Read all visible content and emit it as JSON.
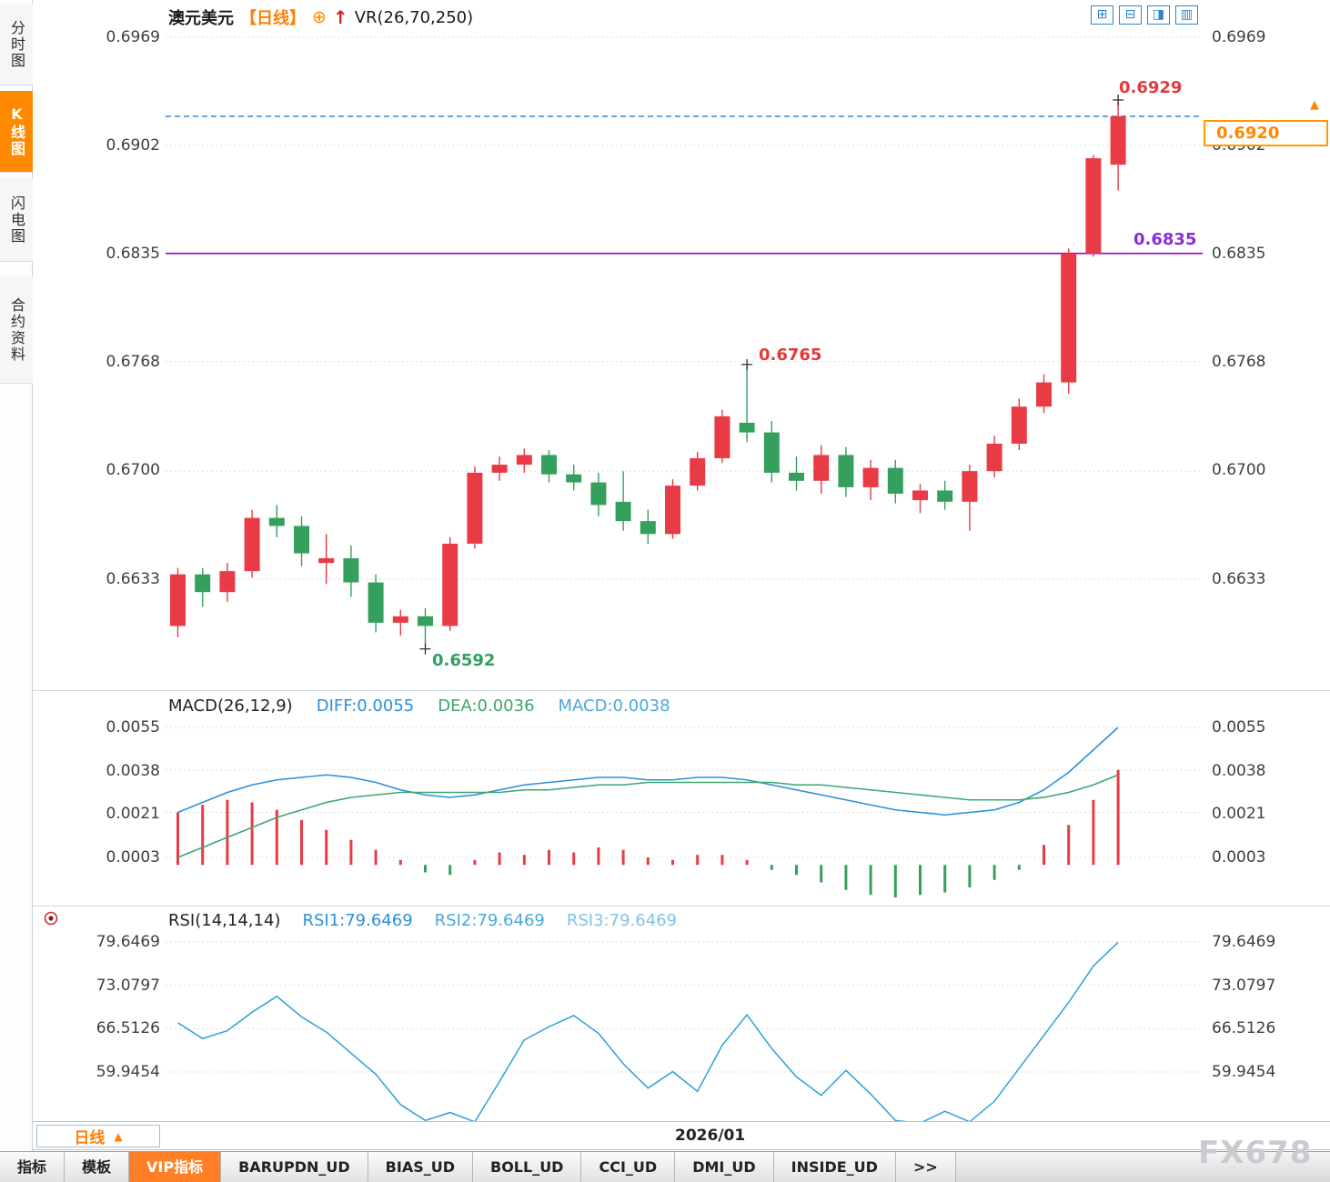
{
  "window": {
    "watermark": "FX678"
  },
  "icons": {
    "circle_plus": "⊕",
    "up_arrow": "↑",
    "triangle_up": "▲",
    "layout": [
      "⊞",
      "⊟",
      "◨",
      "▥"
    ]
  },
  "colors": {
    "up": "#e83b46",
    "down": "#35a05e",
    "accent_orange": "#ff7f27",
    "purple_line": "#9900cc",
    "dashed_blue": "#1a7fd4",
    "diff_line": "#2b8fdc",
    "dea_line": "#3aa76d",
    "macd_value": "#49a8d8",
    "rsi_line": "#2d9fd8",
    "grid": "#d9dde2"
  },
  "sidebar": {
    "items": [
      {
        "label": "分时图",
        "active": false
      },
      {
        "label": "K线图",
        "active": true
      },
      {
        "label": "闪电图",
        "active": false
      },
      {
        "label": "合约资料",
        "active": false
      }
    ]
  },
  "header": {
    "symbol": "澳元美元",
    "period_tag": "【日线】",
    "indicator": "VR(26,70,250)"
  },
  "main_chart": {
    "axis_labels": [
      "0.6969",
      "0.6902",
      "0.6835",
      "0.6768",
      "0.6700",
      "0.6633"
    ],
    "price_box": "0.6920",
    "high_label": "0.6929",
    "peak_label": "0.6765",
    "low_label": "0.6592",
    "hline_label": "0.6835"
  },
  "macd_panel": {
    "title": "MACD(26,12,9)",
    "diff": "DIFF:0.0055",
    "dea": "DEA:0.0036",
    "macd": "MACD:0.0038",
    "axis_labels": [
      "0.0055",
      "0.0038",
      "0.0021",
      "0.0003"
    ]
  },
  "rsi_panel": {
    "title": "RSI(14,14,14)",
    "rsi1": "RSI1:79.6469",
    "rsi2": "RSI2:79.6469",
    "rsi3": "RSI3:79.6469",
    "axis_labels": [
      "79.6469",
      "73.0797",
      "66.5126",
      "59.9454"
    ]
  },
  "timeline": {
    "period": "日线",
    "date": "2026/01"
  },
  "bottom_tabs": [
    {
      "label": "指标",
      "active": false
    },
    {
      "label": "模板",
      "active": false
    },
    {
      "label": "VIP指标",
      "active": true
    },
    {
      "label": "BARUPDN_UD",
      "active": false
    },
    {
      "label": "BIAS_UD",
      "active": false
    },
    {
      "label": "BOLL_UD",
      "active": false
    },
    {
      "label": "CCI_UD",
      "active": false
    },
    {
      "label": "DMI_UD",
      "active": false
    },
    {
      "label": "INSIDE_UD",
      "active": false
    },
    {
      "label": ">>",
      "active": false
    }
  ],
  "chart_data": [
    {
      "type": "candlestick",
      "title": "澳元美元 日线",
      "overlay_indicator": "VR(26,70,250)",
      "ylim": [
        0.6585,
        0.6975
      ],
      "y_ticks": [
        0.6969,
        0.6902,
        0.6835,
        0.6768,
        0.67,
        0.6633
      ],
      "hlines": [
        {
          "value": 0.692,
          "style": "dashed",
          "label": "0.6920"
        },
        {
          "value": 0.6835,
          "style": "solid",
          "label": "0.6835"
        }
      ],
      "markers": [
        {
          "price": 0.6929,
          "index": 38,
          "label": "0.6929",
          "below": false
        },
        {
          "price": 0.6765,
          "index": 23,
          "label": "0.6765",
          "below": false
        },
        {
          "price": 0.6592,
          "index": 10,
          "label": "0.6592",
          "below": true
        }
      ],
      "ohlc": [
        [
          0.6604,
          0.664,
          0.6597,
          0.6636
        ],
        [
          0.6636,
          0.664,
          0.6616,
          0.6625
        ],
        [
          0.6625,
          0.6643,
          0.6619,
          0.6638
        ],
        [
          0.6638,
          0.6676,
          0.6634,
          0.6671
        ],
        [
          0.6671,
          0.6679,
          0.6659,
          0.6666
        ],
        [
          0.6666,
          0.6672,
          0.6641,
          0.6649
        ],
        [
          0.6643,
          0.6661,
          0.663,
          0.6646
        ],
        [
          0.6646,
          0.6654,
          0.6622,
          0.6631
        ],
        [
          0.6631,
          0.6636,
          0.66,
          0.6606
        ],
        [
          0.6606,
          0.6614,
          0.6598,
          0.661
        ],
        [
          0.661,
          0.6615,
          0.6592,
          0.6604
        ],
        [
          0.6604,
          0.6659,
          0.6601,
          0.6655
        ],
        [
          0.6655,
          0.6703,
          0.6652,
          0.6699
        ],
        [
          0.6699,
          0.6709,
          0.6694,
          0.6704
        ],
        [
          0.6704,
          0.6714,
          0.6699,
          0.671
        ],
        [
          0.671,
          0.6713,
          0.6693,
          0.6698
        ],
        [
          0.6698,
          0.6704,
          0.6688,
          0.6693
        ],
        [
          0.6693,
          0.6699,
          0.6672,
          0.6679
        ],
        [
          0.6681,
          0.67,
          0.6663,
          0.6669
        ],
        [
          0.6669,
          0.6676,
          0.6655,
          0.6661
        ],
        [
          0.6661,
          0.6695,
          0.6658,
          0.6691
        ],
        [
          0.6691,
          0.6712,
          0.6688,
          0.6708
        ],
        [
          0.6708,
          0.6738,
          0.6705,
          0.6734
        ],
        [
          0.673,
          0.6765,
          0.6718,
          0.6724
        ],
        [
          0.6724,
          0.6731,
          0.6693,
          0.6699
        ],
        [
          0.6699,
          0.6709,
          0.6688,
          0.6694
        ],
        [
          0.6694,
          0.6716,
          0.6686,
          0.671
        ],
        [
          0.671,
          0.6715,
          0.6684,
          0.669
        ],
        [
          0.669,
          0.6707,
          0.6682,
          0.6702
        ],
        [
          0.6702,
          0.6707,
          0.668,
          0.6686
        ],
        [
          0.6682,
          0.6692,
          0.6674,
          0.6688
        ],
        [
          0.6688,
          0.6694,
          0.6676,
          0.6681
        ],
        [
          0.6681,
          0.6704,
          0.6663,
          0.67
        ],
        [
          0.67,
          0.6722,
          0.6696,
          0.6717
        ],
        [
          0.6717,
          0.6745,
          0.6713,
          0.674
        ],
        [
          0.674,
          0.676,
          0.6736,
          0.6755
        ],
        [
          0.6755,
          0.6838,
          0.6748,
          0.6835
        ],
        [
          0.6835,
          0.6896,
          0.6833,
          0.6894
        ],
        [
          0.689,
          0.6929,
          0.6874,
          0.692
        ]
      ]
    },
    {
      "type": "macd",
      "title": "MACD(26,12,9)",
      "params": [
        26,
        12,
        9
      ],
      "latest": {
        "diff": 0.0055,
        "dea": 0.0036,
        "macd": 0.0038
      },
      "y_ticks": [
        0.0055,
        0.0038,
        0.0021,
        0.0003
      ],
      "diff": [
        0.0021,
        0.0025,
        0.0029,
        0.0032,
        0.0034,
        0.0035,
        0.0036,
        0.0035,
        0.0033,
        0.003,
        0.0028,
        0.0027,
        0.0028,
        0.003,
        0.0032,
        0.0033,
        0.0034,
        0.0035,
        0.0035,
        0.0034,
        0.0034,
        0.0035,
        0.0035,
        0.0034,
        0.0032,
        0.003,
        0.0028,
        0.0026,
        0.0024,
        0.0022,
        0.0021,
        0.002,
        0.0021,
        0.0022,
        0.0025,
        0.003,
        0.0037,
        0.0046,
        0.0055
      ],
      "dea": [
        0.0003,
        0.0007,
        0.0011,
        0.0015,
        0.0019,
        0.0022,
        0.0025,
        0.0027,
        0.0028,
        0.0029,
        0.0029,
        0.0029,
        0.0029,
        0.0029,
        0.003,
        0.003,
        0.0031,
        0.0032,
        0.0032,
        0.0033,
        0.0033,
        0.0033,
        0.0033,
        0.0033,
        0.0033,
        0.0032,
        0.0032,
        0.0031,
        0.003,
        0.0029,
        0.0028,
        0.0027,
        0.0026,
        0.0026,
        0.0026,
        0.0027,
        0.0029,
        0.0032,
        0.0036
      ],
      "histogram": [
        0.0021,
        0.0024,
        0.0026,
        0.0025,
        0.0022,
        0.0018,
        0.0014,
        0.001,
        0.0006,
        0.0002,
        -0.0003,
        -0.0004,
        0.0002,
        0.0005,
        0.0004,
        0.0006,
        0.0005,
        0.0007,
        0.0006,
        0.0003,
        0.0002,
        0.0004,
        0.0004,
        0.0002,
        -0.0002,
        -0.0004,
        -0.0007,
        -0.001,
        -0.0012,
        -0.0013,
        -0.0012,
        -0.0011,
        -0.0009,
        -0.0006,
        -0.0002,
        0.0008,
        0.0016,
        0.0026,
        0.0038
      ]
    },
    {
      "type": "line",
      "title": "RSI(14,14,14)",
      "latest": {
        "rsi1": 79.6469,
        "rsi2": 79.6469,
        "rsi3": 79.6469
      },
      "y_ticks": [
        79.6469,
        73.0797,
        66.5126,
        59.9454
      ],
      "rsi": [
        67.4,
        65.0,
        66.2,
        69.0,
        71.4,
        68.3,
        66.0,
        62.8,
        59.6,
        55.0,
        52.6,
        53.8,
        52.4,
        58.5,
        64.8,
        66.8,
        68.5,
        65.8,
        61.2,
        57.5,
        60.0,
        57.0,
        64.0,
        68.6,
        63.5,
        59.2,
        56.4,
        60.2,
        56.6,
        52.6,
        52.2,
        54.0,
        52.4,
        55.5,
        60.5,
        65.5,
        70.5,
        76.0,
        79.6
      ]
    }
  ]
}
